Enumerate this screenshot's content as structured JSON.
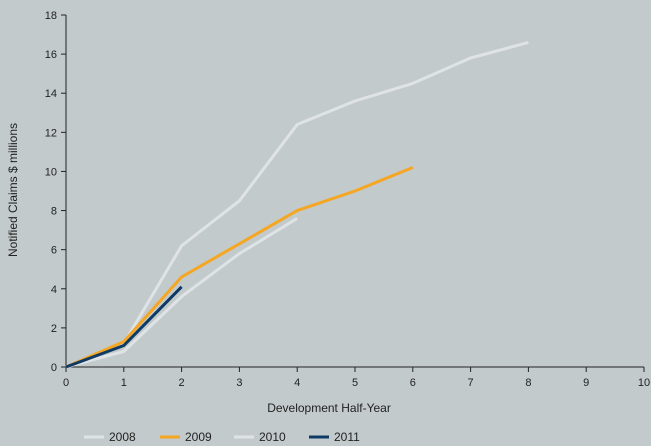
{
  "chart_data": {
    "type": "line",
    "title": "",
    "xlabel": "Development Half-Year",
    "ylabel": "Notified Claims $ millions",
    "xlim": [
      0,
      10
    ],
    "ylim": [
      0,
      18
    ],
    "x_ticks": [
      "0",
      "1",
      "2",
      "3",
      "4",
      "5",
      "6",
      "7",
      "8",
      "9",
      "10"
    ],
    "y_ticks": [
      "0",
      "2",
      "4",
      "6",
      "8",
      "10",
      "12",
      "14",
      "16",
      "18"
    ],
    "grid": false,
    "legend_position": "bottom-left",
    "series": [
      {
        "name": "2008",
        "color": "#dfe3e6",
        "x": [
          0,
          1,
          2,
          3,
          4,
          5,
          6,
          7,
          8
        ],
        "values": [
          0,
          1.2,
          6.2,
          8.5,
          12.4,
          13.6,
          14.5,
          15.8,
          16.6
        ]
      },
      {
        "name": "2009",
        "color": "#f5a623",
        "x": [
          0,
          1,
          2,
          3,
          4,
          5,
          6
        ],
        "values": [
          0,
          1.3,
          4.6,
          6.3,
          8.0,
          9.0,
          10.2
        ]
      },
      {
        "name": "2010",
        "color": "#dfe3e6",
        "x": [
          0,
          1,
          2,
          3,
          4
        ],
        "values": [
          0,
          0.8,
          3.6,
          5.8,
          7.6
        ]
      },
      {
        "name": "2011",
        "color": "#0f3a63",
        "x": [
          0,
          1,
          2
        ],
        "values": [
          0,
          1.1,
          4.1
        ]
      }
    ]
  }
}
